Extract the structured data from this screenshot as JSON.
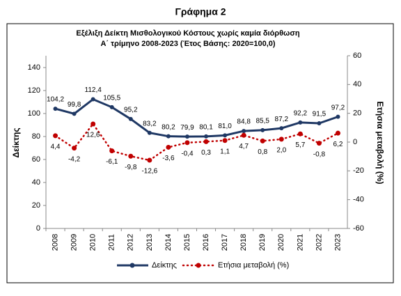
{
  "heading": "Γράφημα 2",
  "chart_data": {
    "type": "line",
    "title": "Εξέλιξη Δείκτη Μισθολογικού  Κόστους χωρίς καμία διόρθωση",
    "subtitle": "Α΄ τρίμηνο 2008-2023 (Έτος Βάσης: 2020=100,0)",
    "y_label": "Δείκτης",
    "y2_label": "Ετήσια μεταβολή (%)",
    "categories": [
      "2008",
      "2009",
      "2010",
      "2011",
      "2012",
      "2013",
      "2014",
      "2015",
      "2016",
      "2017",
      "2018",
      "2019",
      "2020",
      "2021",
      "2022",
      "2023"
    ],
    "ylim": [
      0,
      140
    ],
    "yticks": [
      0,
      20,
      40,
      60,
      80,
      100,
      120,
      140
    ],
    "y2lim": [
      -60,
      60
    ],
    "y2ticks": [
      -60,
      -40,
      -20,
      0,
      20,
      40,
      60
    ],
    "legend": "bottom",
    "series": [
      {
        "name": "Δείκτης",
        "color": "#1f3864",
        "style": "solid",
        "values": [
          104.2,
          99.8,
          112.4,
          105.5,
          95.2,
          83.2,
          80.2,
          79.9,
          80.1,
          81.0,
          84.8,
          85.5,
          87.2,
          92.2,
          91.5,
          97.2
        ],
        "value_labels": [
          "104,2",
          "99,8",
          "112,4",
          "105,5",
          "95,2",
          "83,2",
          "80,2",
          "79,9",
          "80,1",
          "81,0",
          "84,8",
          "85,5",
          "87,2",
          "92,2",
          "91,5",
          "97,2"
        ]
      },
      {
        "name": "Ετήσια μεταβολή (%)",
        "color": "#c00000",
        "style": "dotted",
        "axis": "y2",
        "values": [
          4.4,
          -4.2,
          12.6,
          -6.1,
          -9.8,
          -12.6,
          -3.6,
          -0.4,
          0.3,
          1.1,
          4.7,
          0.8,
          2.0,
          5.7,
          -0.8,
          6.2
        ],
        "value_labels": [
          "4,4",
          "-4,2",
          "12,6",
          "-6,1",
          "-9,8",
          "-12,6",
          "-3,6",
          "-0,4",
          "0,3",
          "1,1",
          "4,7",
          "0,8",
          "2,0",
          "5,7",
          "-0,8",
          "6,2"
        ]
      }
    ]
  }
}
